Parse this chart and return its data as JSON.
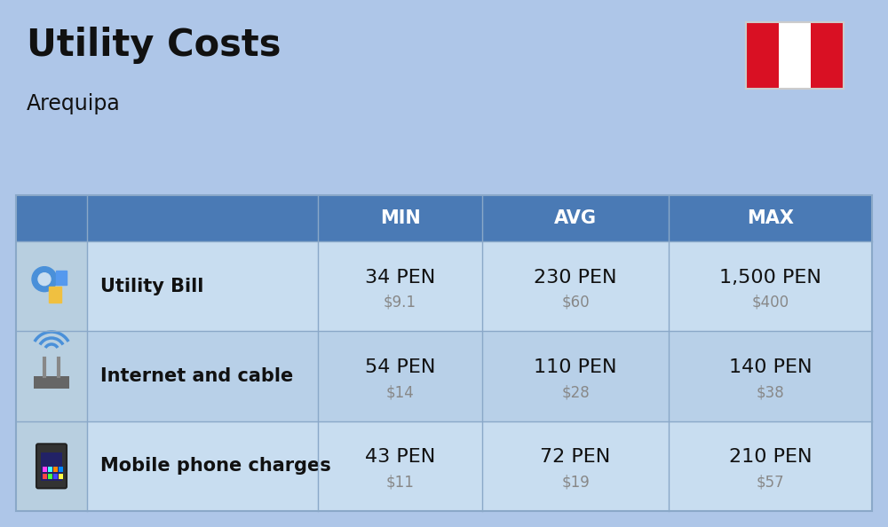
{
  "title": "Utility Costs",
  "subtitle": "Arequipa",
  "bg_color": "#aec6e8",
  "header_bg_color": "#4a7ab5",
  "header_text_color": "#ffffff",
  "row_bg_color_1": "#c8ddf0",
  "row_bg_color_2": "#b8d0e8",
  "icon_col_bg": "#b8cfe0",
  "col_headers": [
    "MIN",
    "AVG",
    "MAX"
  ],
  "rows": [
    {
      "label": "Utility Bill",
      "min_pen": "34 PEN",
      "min_usd": "$9.1",
      "avg_pen": "230 PEN",
      "avg_usd": "$60",
      "max_pen": "1,500 PEN",
      "max_usd": "$400"
    },
    {
      "label": "Internet and cable",
      "min_pen": "54 PEN",
      "min_usd": "$14",
      "avg_pen": "110 PEN",
      "avg_usd": "$28",
      "max_pen": "140 PEN",
      "max_usd": "$38"
    },
    {
      "label": "Mobile phone charges",
      "min_pen": "43 PEN",
      "min_usd": "$11",
      "avg_pen": "72 PEN",
      "avg_usd": "$19",
      "max_pen": "210 PEN",
      "max_usd": "$57"
    }
  ],
  "peru_flag_colors": [
    "#d91023",
    "#ffffff",
    "#d91023"
  ],
  "pen_fontsize": 16,
  "usd_fontsize": 12,
  "label_fontsize": 15,
  "header_fontsize": 15,
  "title_fontsize": 30,
  "subtitle_fontsize": 17
}
